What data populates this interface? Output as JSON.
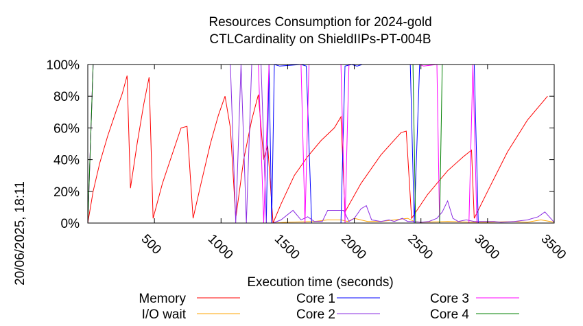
{
  "chart_data": {
    "type": "line",
    "title": "Resources Consumption for 2024-gold",
    "subtitle": "CTLCardinality on ShieldIIPs-PT-004B",
    "xlabel": "Execution time (seconds)",
    "ylabel": "",
    "timestamp": "20/06/2025, 18:11",
    "xlim": [
      0,
      3500
    ],
    "ylim": [
      0,
      100
    ],
    "x_ticks": [
      500,
      1000,
      1500,
      2000,
      2500,
      3000,
      3500
    ],
    "x_tick_labels": [
      "500",
      "1000",
      "1500",
      "2000",
      "2500",
      "3000",
      "3500"
    ],
    "y_ticks": [
      0,
      20,
      40,
      60,
      80,
      100
    ],
    "y_tick_labels": [
      "0%",
      "20%",
      "40%",
      "60%",
      "80%",
      "100%"
    ],
    "grid": false,
    "legend_position": "bottom",
    "series": [
      {
        "name": "Memory",
        "color": "#ff0000",
        "points": [
          [
            0,
            0
          ],
          [
            40,
            20
          ],
          [
            90,
            38
          ],
          [
            150,
            55
          ],
          [
            210,
            70
          ],
          [
            260,
            82
          ],
          [
            295,
            93
          ],
          [
            320,
            22
          ],
          [
            370,
            50
          ],
          [
            420,
            75
          ],
          [
            460,
            92
          ],
          [
            490,
            3
          ],
          [
            560,
            25
          ],
          [
            640,
            45
          ],
          [
            700,
            60
          ],
          [
            745,
            61
          ],
          [
            790,
            3
          ],
          [
            850,
            25
          ],
          [
            920,
            50
          ],
          [
            980,
            68
          ],
          [
            1030,
            80
          ],
          [
            1070,
            60
          ],
          [
            1110,
            3
          ],
          [
            1170,
            40
          ],
          [
            1230,
            65
          ],
          [
            1280,
            81
          ],
          [
            1320,
            40
          ],
          [
            1350,
            49
          ],
          [
            1390,
            0
          ],
          [
            1450,
            12
          ],
          [
            1550,
            30
          ],
          [
            1650,
            42
          ],
          [
            1750,
            52
          ],
          [
            1850,
            60
          ],
          [
            1900,
            67
          ],
          [
            1930,
            7
          ],
          [
            2050,
            25
          ],
          [
            2200,
            43
          ],
          [
            2350,
            57
          ],
          [
            2390,
            58
          ],
          [
            2430,
            3
          ],
          [
            2550,
            18
          ],
          [
            2700,
            33
          ],
          [
            2820,
            42
          ],
          [
            2880,
            46
          ],
          [
            2900,
            3
          ],
          [
            3000,
            20
          ],
          [
            3150,
            45
          ],
          [
            3300,
            65
          ],
          [
            3450,
            80
          ]
        ]
      },
      {
        "name": "I/O wait",
        "color": "#ffa500",
        "points": [
          [
            0,
            0
          ],
          [
            1390,
            0
          ],
          [
            1500,
            0.5
          ],
          [
            1700,
            1
          ],
          [
            1800,
            2
          ],
          [
            1900,
            2
          ],
          [
            1950,
            1
          ],
          [
            2000,
            3
          ],
          [
            2100,
            1
          ],
          [
            2200,
            1
          ],
          [
            2300,
            2
          ],
          [
            2400,
            3
          ],
          [
            2450,
            1
          ],
          [
            2500,
            0.5
          ],
          [
            2700,
            1
          ],
          [
            2900,
            0.5
          ],
          [
            3000,
            0.5
          ],
          [
            3200,
            1
          ],
          [
            3300,
            0.5
          ],
          [
            3400,
            2
          ],
          [
            3500,
            0.5
          ]
        ]
      },
      {
        "name": "Core 1",
        "color": "#0000ff",
        "points": [
          [
            0,
            0
          ],
          [
            1340,
            0
          ],
          [
            1360,
            100
          ],
          [
            1380,
            0
          ],
          [
            1400,
            100
          ],
          [
            1440,
            99
          ],
          [
            1600,
            100
          ],
          [
            1640,
            99
          ],
          [
            1680,
            0
          ],
          [
            1900,
            0
          ],
          [
            1930,
            99
          ],
          [
            1980,
            100
          ],
          [
            2020,
            99
          ],
          [
            2060,
            100
          ],
          [
            2420,
            100
          ],
          [
            2450,
            0
          ],
          [
            2490,
            100
          ],
          [
            2900,
            100
          ],
          [
            2930,
            0
          ],
          [
            3500,
            0
          ]
        ]
      },
      {
        "name": "Core 2",
        "color": "#8a2be2",
        "points": [
          [
            0,
            0
          ],
          [
            40,
            100
          ],
          [
            1070,
            100
          ],
          [
            1110,
            0
          ],
          [
            1150,
            100
          ],
          [
            1190,
            0
          ],
          [
            1230,
            100
          ],
          [
            1300,
            100
          ],
          [
            1340,
            0
          ],
          [
            1390,
            0
          ],
          [
            1450,
            2
          ],
          [
            1540,
            8
          ],
          [
            1600,
            2
          ],
          [
            1650,
            4
          ],
          [
            1700,
            1
          ],
          [
            1760,
            1
          ],
          [
            1800,
            8
          ],
          [
            1880,
            8
          ],
          [
            1920,
            8
          ],
          [
            1960,
            1
          ],
          [
            2000,
            3
          ],
          [
            2050,
            9
          ],
          [
            2090,
            11
          ],
          [
            2130,
            2
          ],
          [
            2200,
            1
          ],
          [
            2260,
            2
          ],
          [
            2300,
            1
          ],
          [
            2360,
            3
          ],
          [
            2400,
            1
          ],
          [
            2440,
            1
          ],
          [
            2500,
            0.5
          ],
          [
            2560,
            1
          ],
          [
            2620,
            3
          ],
          [
            2660,
            7
          ],
          [
            2700,
            14
          ],
          [
            2740,
            3
          ],
          [
            2780,
            1
          ],
          [
            2840,
            2
          ],
          [
            2900,
            1
          ],
          [
            2960,
            1
          ],
          [
            3050,
            1
          ],
          [
            3100,
            0.5
          ],
          [
            3200,
            1
          ],
          [
            3300,
            2
          ],
          [
            3380,
            4
          ],
          [
            3430,
            7
          ],
          [
            3500,
            0.5
          ]
        ]
      },
      {
        "name": "Core 3",
        "color": "#ff00ff",
        "points": [
          [
            0,
            0
          ],
          [
            40,
            100
          ],
          [
            1280,
            100
          ],
          [
            1320,
            0
          ],
          [
            1360,
            100
          ],
          [
            1600,
            100
          ],
          [
            1630,
            0
          ],
          [
            1660,
            100
          ],
          [
            1900,
            100
          ],
          [
            1930,
            0
          ],
          [
            1960,
            100
          ],
          [
            2490,
            100
          ],
          [
            2520,
            99
          ],
          [
            2620,
            100
          ],
          [
            2640,
            0
          ],
          [
            2860,
            0
          ],
          [
            2890,
            100
          ],
          [
            2920,
            0
          ],
          [
            3500,
            0
          ]
        ]
      },
      {
        "name": "Core 4",
        "color": "#008000",
        "points": [
          [
            0,
            0
          ],
          [
            40,
            100
          ],
          [
            2440,
            100
          ],
          [
            2460,
            0
          ],
          [
            2640,
            0
          ],
          [
            2660,
            100
          ],
          [
            3500,
            100
          ]
        ]
      }
    ]
  }
}
